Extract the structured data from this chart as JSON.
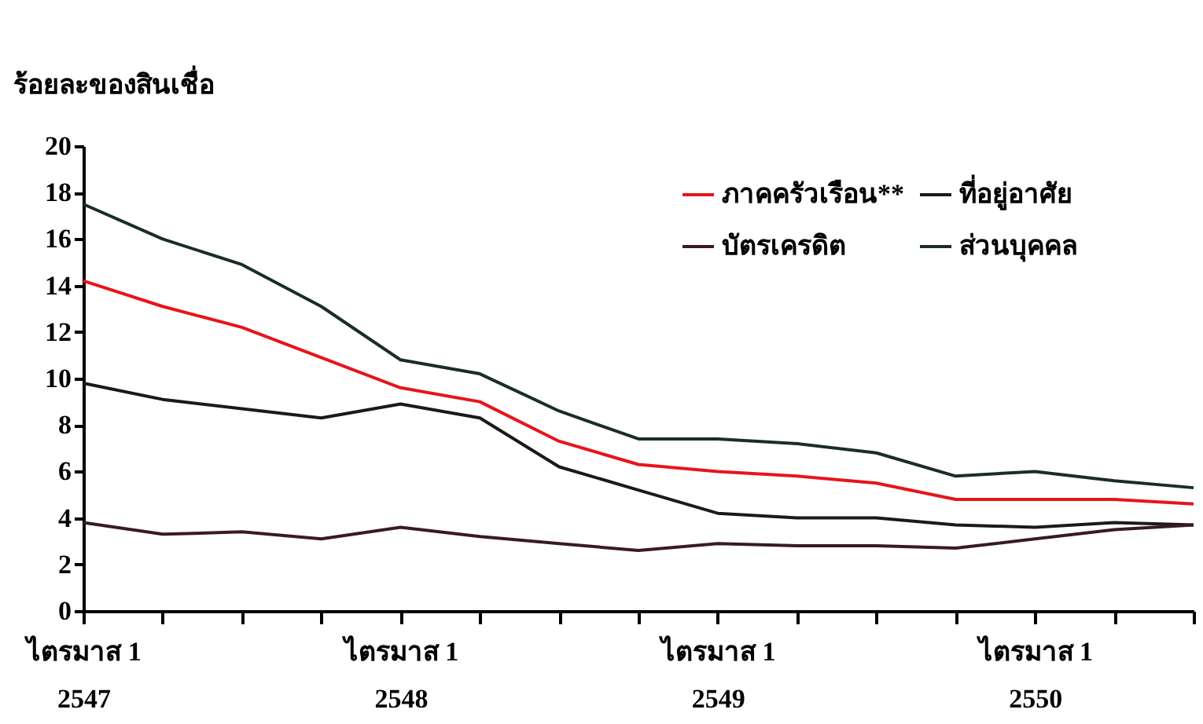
{
  "chart_data": {
    "type": "line",
    "ylabel": "ร้อยละของสินเชื่อ",
    "categories": [
      "ไตรมาส 1\n2547",
      null,
      null,
      null,
      "ไตรมาส 1\n2548",
      null,
      null,
      null,
      "ไตรมาส 1\n2549",
      null,
      null,
      null,
      "ไตรมาส 1\n2550",
      null,
      null
    ],
    "series": [
      {
        "name": "ภาคครัวเรือน**",
        "color": "#e8141b",
        "values": [
          14.2,
          13.1,
          12.2,
          10.9,
          9.6,
          9.0,
          7.3,
          6.3,
          6.0,
          5.8,
          5.5,
          4.8,
          4.8,
          4.8,
          4.6
        ]
      },
      {
        "name": "ที่อยู่อาศัย",
        "color": "#1a1a1a",
        "values": [
          9.8,
          9.1,
          8.7,
          8.3,
          8.9,
          8.3,
          6.2,
          5.2,
          4.2,
          4.0,
          4.0,
          3.7,
          3.6,
          3.8,
          3.7
        ]
      },
      {
        "name": "บัตรเครดิต",
        "color": "#3a1a22",
        "values": [
          3.8,
          3.3,
          3.4,
          3.1,
          3.6,
          3.2,
          2.9,
          2.6,
          2.9,
          2.8,
          2.8,
          2.7,
          3.1,
          3.5,
          3.7
        ]
      },
      {
        "name": "ส่วนบุคคล",
        "color": "#1a2e24",
        "values": [
          17.5,
          16.0,
          14.9,
          13.1,
          10.8,
          10.2,
          8.6,
          7.4,
          7.4,
          7.2,
          6.8,
          5.8,
          6.0,
          5.6,
          5.3
        ]
      }
    ],
    "ylim": [
      0,
      20
    ],
    "yticks": [
      0,
      2,
      4,
      6,
      8,
      10,
      12,
      14,
      16,
      18,
      20
    ],
    "grid": false,
    "legend": "top right",
    "marker": "none",
    "line_style": "solid"
  }
}
